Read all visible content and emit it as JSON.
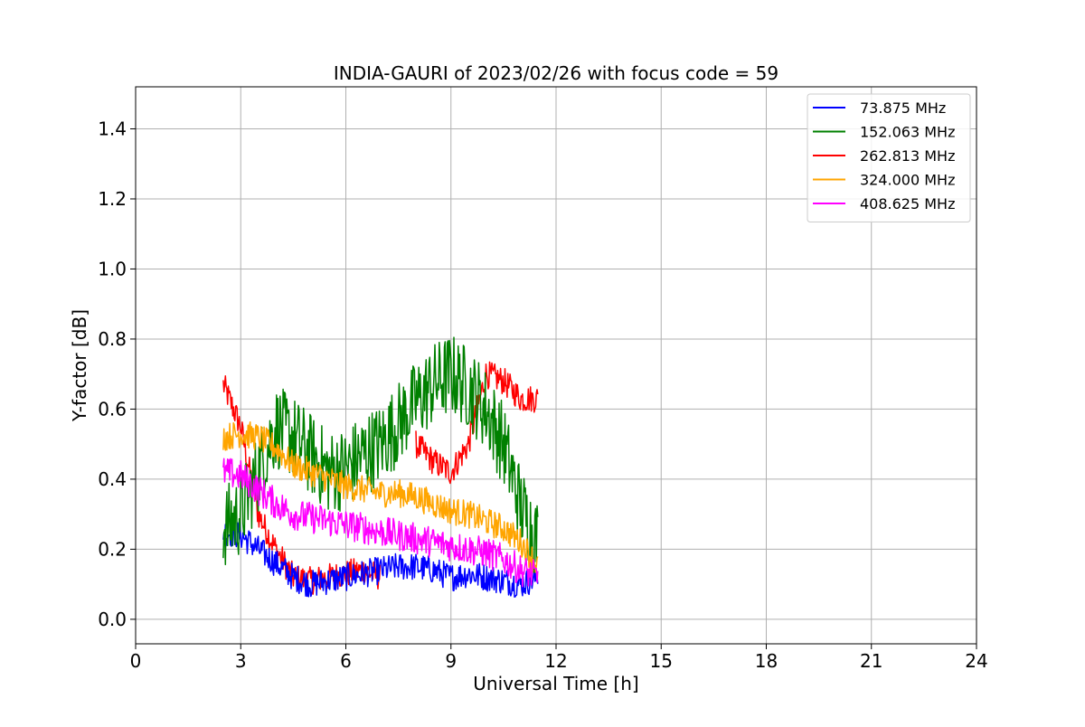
{
  "chart_data": {
    "type": "line",
    "title": "INDIA-GAURI of 2023/02/26 with focus code = 59",
    "xlabel": "Universal Time [h]",
    "ylabel": "Y-factor [dB]",
    "xlim": [
      0,
      24
    ],
    "ylim": [
      -0.07,
      1.52
    ],
    "xticks": [
      0,
      3,
      6,
      9,
      12,
      15,
      18,
      21,
      24
    ],
    "xtick_labels": [
      "0",
      "3",
      "6",
      "9",
      "12",
      "15",
      "18",
      "21",
      "24"
    ],
    "yticks": [
      0.0,
      0.2,
      0.4,
      0.6,
      0.8,
      1.0,
      1.2,
      1.4
    ],
    "ytick_labels": [
      "0.0",
      "0.2",
      "0.4",
      "0.6",
      "0.8",
      "1.0",
      "1.2",
      "1.4"
    ],
    "grid": true,
    "legend_position": "top-right",
    "series": [
      {
        "name": " 73.875 MHz",
        "color": "#0000ff",
        "x": [
          2.5,
          3.0,
          3.5,
          4.0,
          4.5,
          5.0,
          5.5,
          6.0,
          6.5,
          7.0,
          7.5,
          8.0,
          8.5,
          9.0,
          9.5,
          10.0,
          10.5,
          11.0,
          11.5
        ],
        "y": [
          0.25,
          0.24,
          0.2,
          0.16,
          0.12,
          0.1,
          0.11,
          0.12,
          0.13,
          0.14,
          0.15,
          0.15,
          0.14,
          0.12,
          0.13,
          0.12,
          0.11,
          0.1,
          0.12
        ],
        "noise": 0.04
      },
      {
        "name": "152.063 MHz",
        "color": "#008000",
        "x": [
          2.5,
          3.0,
          3.5,
          4.0,
          4.5,
          5.0,
          5.5,
          6.0,
          6.5,
          7.0,
          7.5,
          8.0,
          8.5,
          9.0,
          9.5,
          10.0,
          10.5,
          11.0,
          11.5
        ],
        "y": [
          0.26,
          0.3,
          0.42,
          0.55,
          0.52,
          0.47,
          0.42,
          0.43,
          0.47,
          0.5,
          0.56,
          0.62,
          0.67,
          0.7,
          0.66,
          0.6,
          0.5,
          0.32,
          0.22
        ],
        "noise": 0.12
      },
      {
        "name": "262.813 MHz",
        "color": "#ff0000",
        "x": [
          2.5,
          3.0,
          3.5,
          4.0,
          4.5,
          5.0,
          5.5,
          6.0,
          6.5,
          7.0,
          7.5,
          8.0,
          8.5,
          9.0,
          9.5,
          10.0,
          10.5,
          11.0,
          11.5
        ],
        "y": [
          0.67,
          0.55,
          0.3,
          0.2,
          0.12,
          0.11,
          0.12,
          0.13,
          0.14,
          0.12,
          null,
          0.5,
          0.45,
          0.42,
          0.5,
          0.7,
          0.68,
          0.63,
          0.63
        ],
        "noise": 0.04
      },
      {
        "name": "324.000 MHz",
        "color": "#ffa500",
        "x": [
          2.5,
          3.0,
          3.5,
          4.0,
          4.5,
          5.0,
          5.5,
          6.0,
          6.5,
          7.0,
          7.5,
          8.0,
          8.5,
          9.0,
          9.5,
          10.0,
          10.5,
          11.0,
          11.5
        ],
        "y": [
          0.52,
          0.53,
          0.52,
          0.49,
          0.44,
          0.42,
          0.4,
          0.38,
          0.37,
          0.36,
          0.36,
          0.35,
          0.33,
          0.31,
          0.3,
          0.28,
          0.26,
          0.22,
          0.15
        ],
        "noise": 0.04
      },
      {
        "name": "408.625 MHz",
        "color": "#ff00ff",
        "x": [
          2.5,
          3.0,
          3.5,
          4.0,
          4.5,
          5.0,
          5.5,
          6.0,
          6.5,
          7.0,
          7.5,
          8.0,
          8.5,
          9.0,
          9.5,
          10.0,
          10.5,
          11.0,
          11.5
        ],
        "y": [
          0.42,
          0.41,
          0.37,
          0.33,
          0.3,
          0.29,
          0.28,
          0.27,
          0.26,
          0.25,
          0.24,
          0.23,
          0.22,
          0.21,
          0.2,
          0.19,
          0.17,
          0.14,
          0.12
        ],
        "noise": 0.045
      }
    ]
  }
}
